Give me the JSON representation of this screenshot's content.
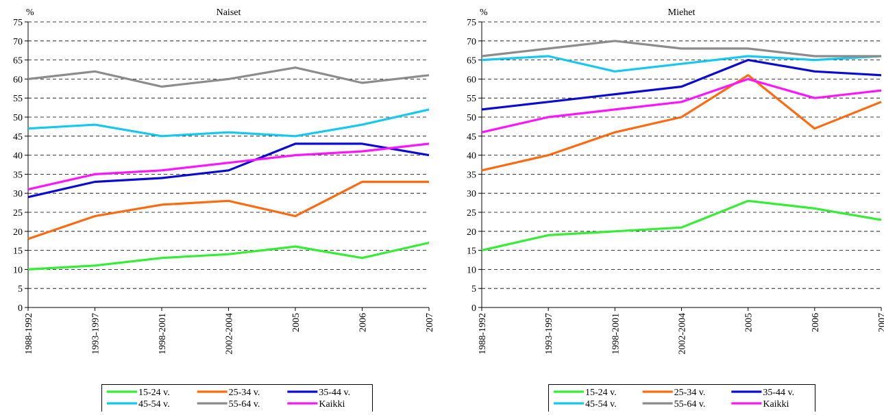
{
  "chart_data": [
    {
      "type": "line",
      "title": "Naiset",
      "y_unit_label": "%",
      "xlabel": "",
      "ylabel": "",
      "ylim": [
        0,
        75
      ],
      "y_ticks": [
        0,
        5,
        10,
        15,
        20,
        25,
        30,
        35,
        40,
        45,
        50,
        55,
        60,
        65,
        70,
        75
      ],
      "grid": "horizontal-dashed",
      "legend_position": "bottom",
      "categories": [
        "1988-1992",
        "1993-1997",
        "1998-2001",
        "2002-2004",
        "2005",
        "2006",
        "2007"
      ],
      "series": [
        {
          "name": "15-24 v.",
          "color": "#33ee33",
          "values": [
            10,
            11,
            13,
            14,
            16,
            13,
            17
          ]
        },
        {
          "name": "25-34 v.",
          "color": "#ff6a10",
          "values": [
            18,
            24,
            27,
            28,
            24,
            33,
            33
          ]
        },
        {
          "name": "35-44 v.",
          "color": "#0a0ad6",
          "values": [
            29,
            33,
            34,
            36,
            43,
            43,
            40
          ]
        },
        {
          "name": "45-54 v.",
          "color": "#14c8f0",
          "values": [
            47,
            48,
            45,
            46,
            45,
            48,
            52
          ]
        },
        {
          "name": "55-64 v.",
          "color": "#8c8c8c",
          "values": [
            60,
            62,
            58,
            60,
            63,
            59,
            61
          ]
        },
        {
          "name": "Kaikki",
          "color": "#ff14ff",
          "values": [
            31,
            35,
            36,
            38,
            40,
            41,
            43
          ]
        }
      ]
    },
    {
      "type": "line",
      "title": "Miehet",
      "y_unit_label": "%",
      "xlabel": "",
      "ylabel": "",
      "ylim": [
        0,
        75
      ],
      "y_ticks": [
        0,
        5,
        10,
        15,
        20,
        25,
        30,
        35,
        40,
        45,
        50,
        55,
        60,
        65,
        70,
        75
      ],
      "grid": "horizontal-dashed",
      "legend_position": "bottom",
      "categories": [
        "1988-1992",
        "1993-1997",
        "1998-2001",
        "2002-2004",
        "2005",
        "2006",
        "2007"
      ],
      "series": [
        {
          "name": "15-24 v.",
          "color": "#33ee33",
          "values": [
            15,
            19,
            20,
            21,
            28,
            26,
            23
          ]
        },
        {
          "name": "25-34 v.",
          "color": "#ff6a10",
          "values": [
            36,
            40,
            46,
            50,
            61,
            47,
            54
          ]
        },
        {
          "name": "35-44 v.",
          "color": "#0a0ad6",
          "values": [
            52,
            54,
            56,
            58,
            65,
            62,
            61
          ]
        },
        {
          "name": "45-54 v.",
          "color": "#14c8f0",
          "values": [
            65,
            66,
            62,
            64,
            66,
            65,
            66
          ]
        },
        {
          "name": "55-64 v.",
          "color": "#8c8c8c",
          "values": [
            66,
            68,
            70,
            68,
            68,
            66,
            66
          ]
        },
        {
          "name": "Kaikki",
          "color": "#ff14ff",
          "values": [
            46,
            50,
            52,
            54,
            60,
            55,
            57
          ]
        }
      ]
    }
  ]
}
